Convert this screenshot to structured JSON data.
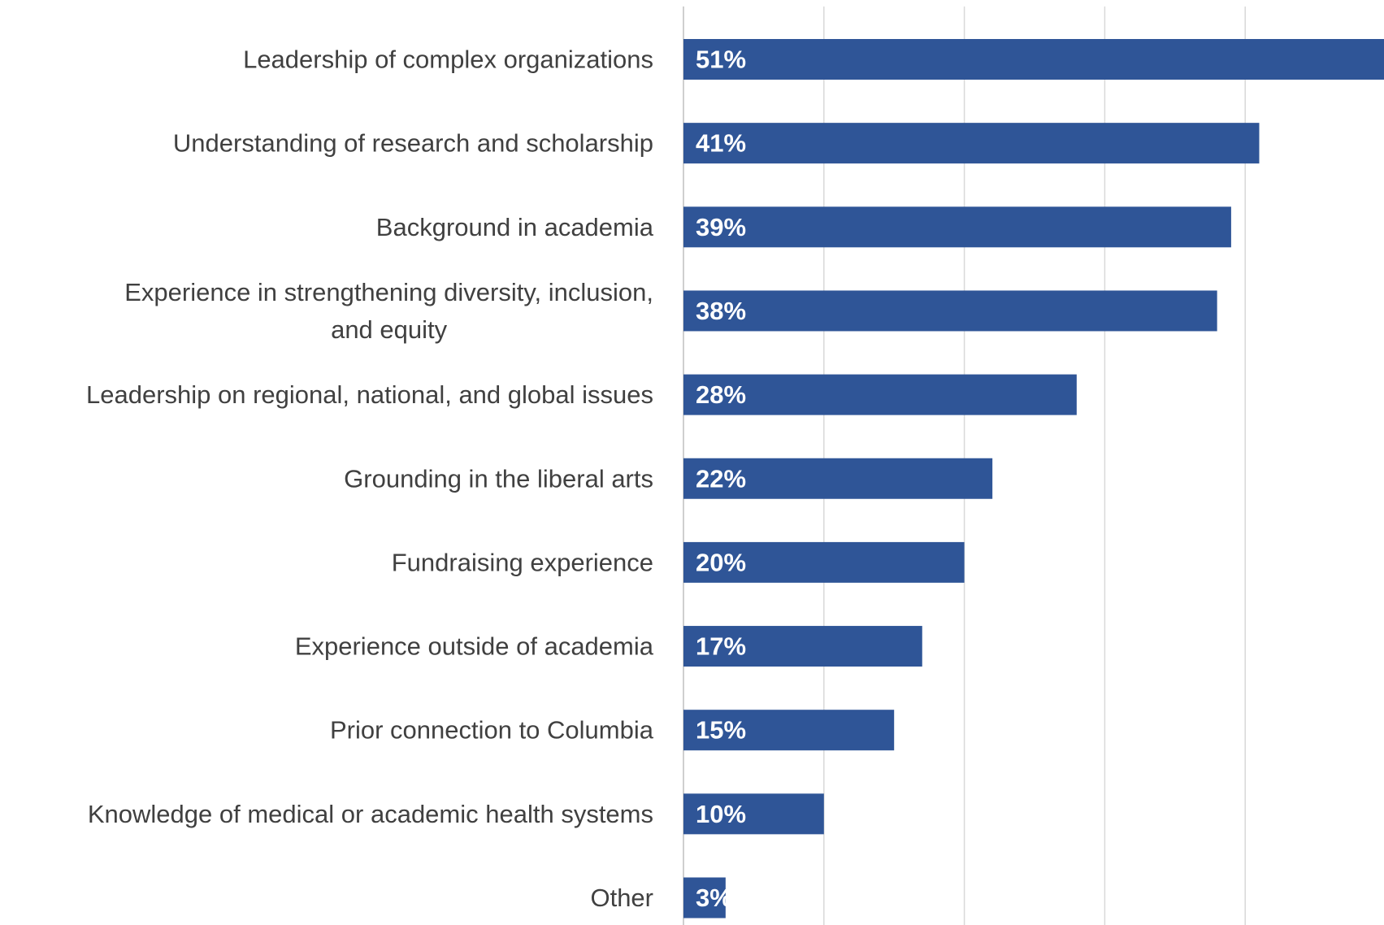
{
  "chart_data": {
    "type": "bar",
    "orientation": "horizontal",
    "categories": [
      "Leadership of complex organizations",
      "Understanding of research and scholarship",
      "Background in academia",
      "Experience in strengthening diversity, inclusion, and equity",
      "Leadership on regional, national, and global issues",
      "Grounding in the liberal arts",
      "Fundraising experience",
      "Experience outside of academia",
      "Prior connection to Columbia",
      "Knowledge of medical or academic health systems",
      "Other"
    ],
    "values": [
      51,
      41,
      39,
      38,
      28,
      22,
      20,
      17,
      15,
      10,
      3
    ],
    "data_labels": [
      "51%",
      "41%",
      "39%",
      "38%",
      "28%",
      "22%",
      "20%",
      "17%",
      "15%",
      "10%",
      "3%"
    ],
    "xlim": [
      0,
      50
    ],
    "x_gridlines": [
      0,
      10,
      20,
      30,
      40,
      50
    ],
    "grid": true,
    "legend": "none",
    "title": "",
    "xlabel": "",
    "ylabel": "",
    "bar_color": "#2F5597"
  }
}
